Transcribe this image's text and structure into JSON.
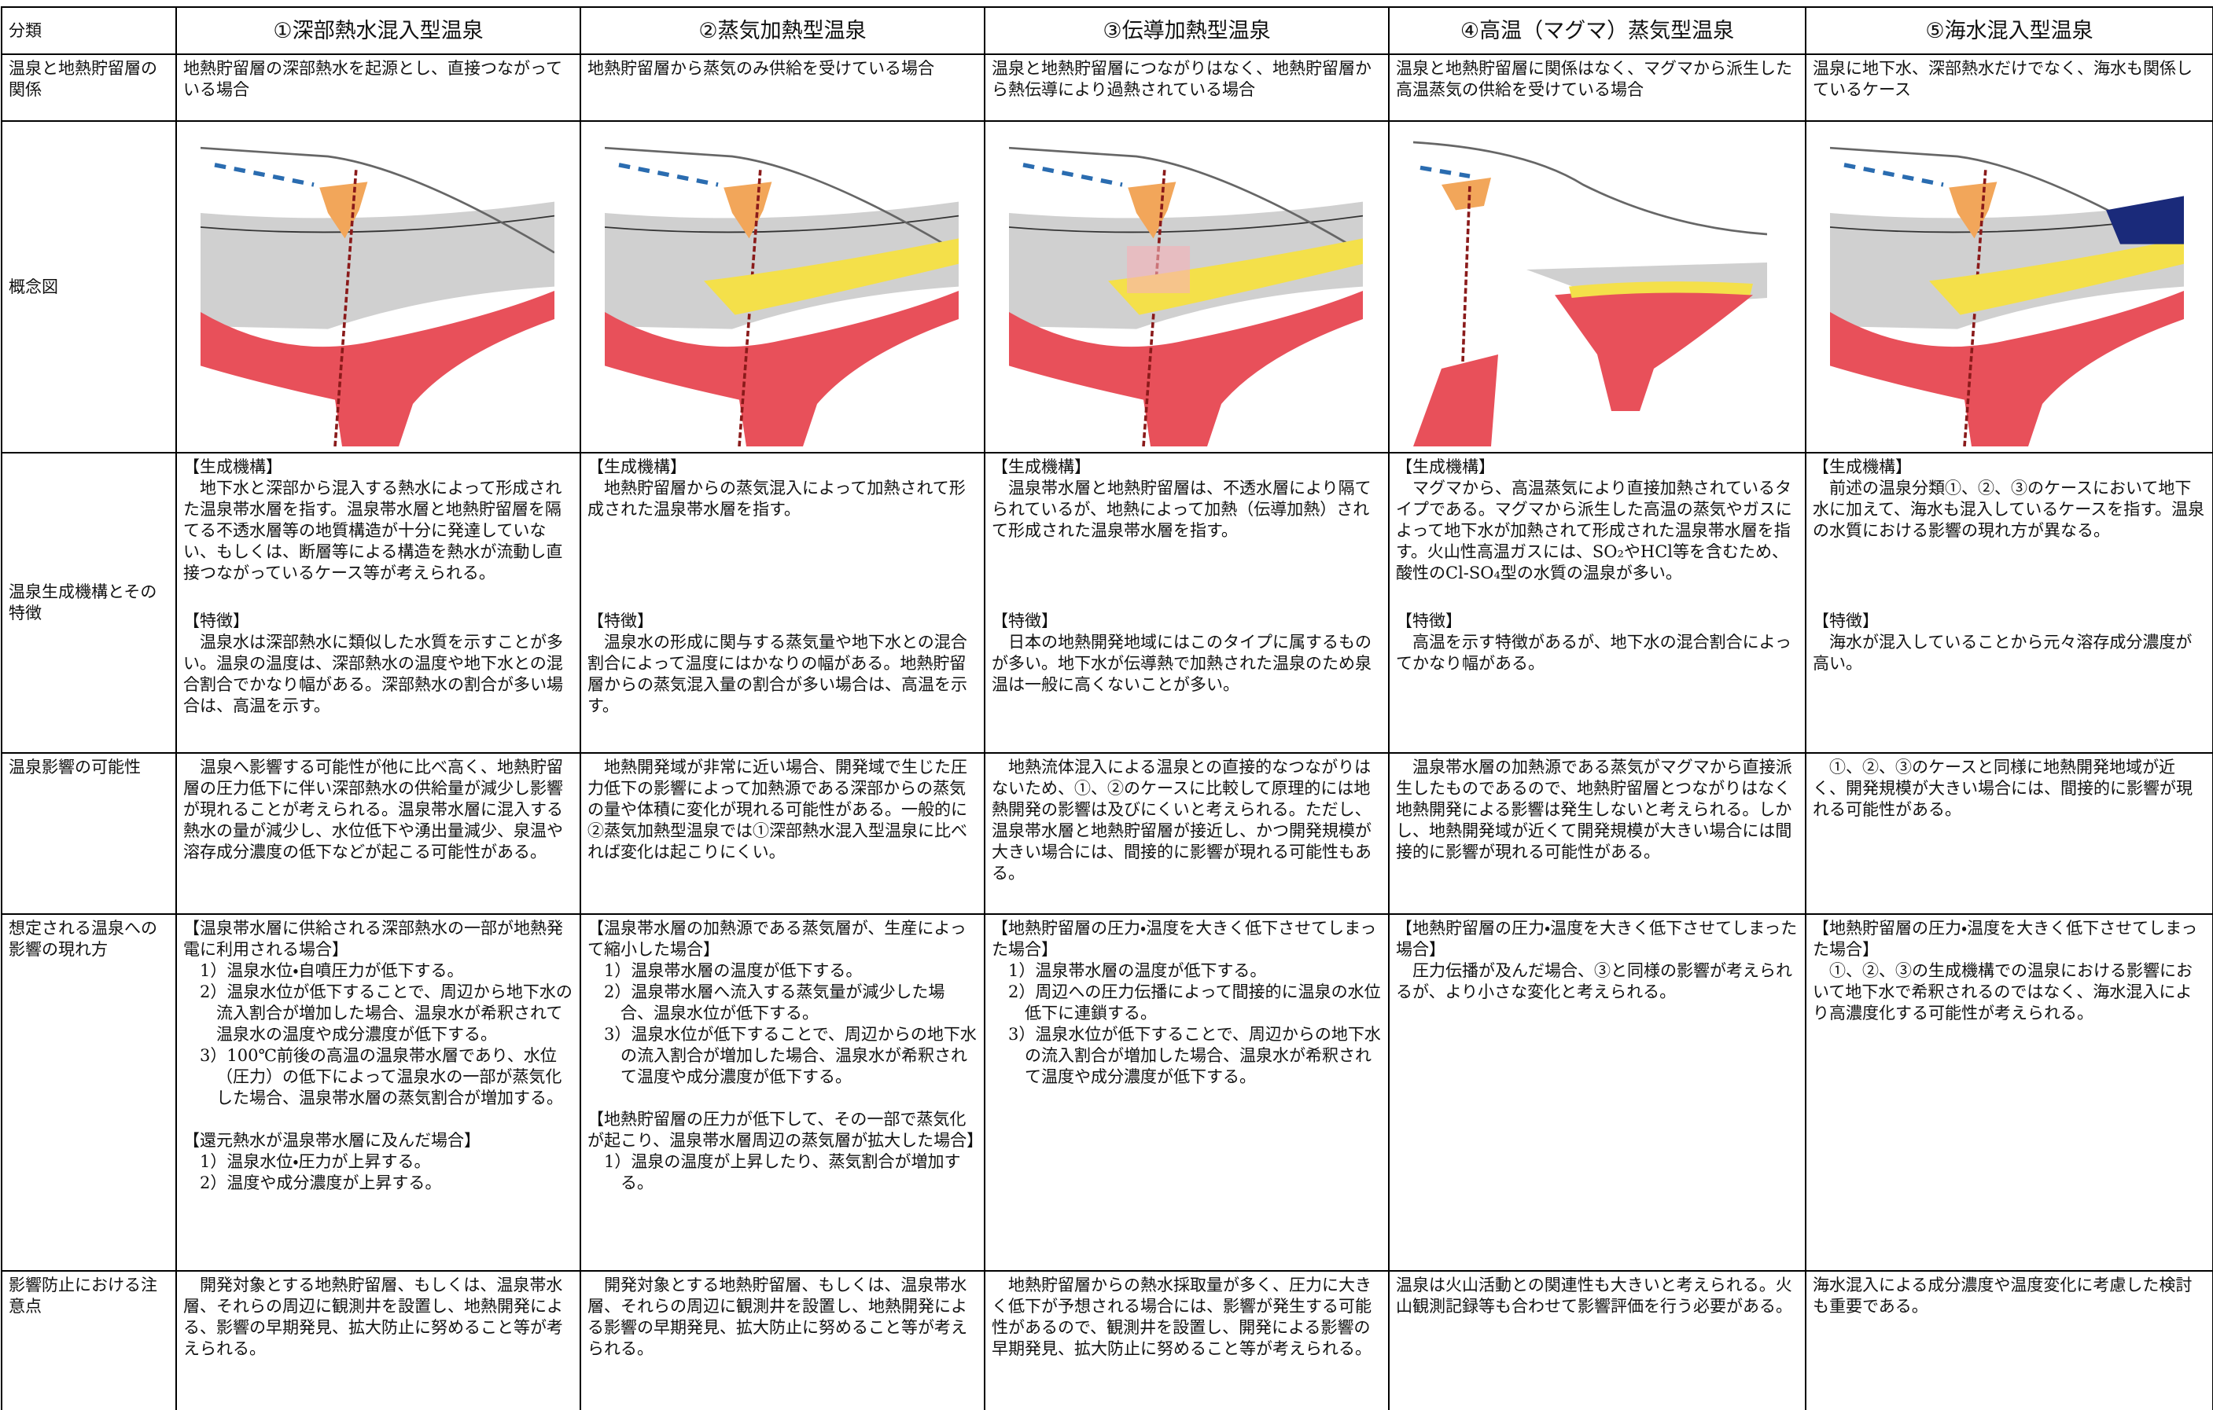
{
  "table": {
    "header": [
      "分類",
      "①深部熱水混入型温泉",
      "②蒸気加熱型温泉",
      "③伝導加熱型温泉",
      "④高温（マグマ）蒸気型温泉",
      "⑤海水混入型温泉"
    ],
    "rows": [
      {
        "label": "温泉と地熱貯留層の関係",
        "cells": [
          "地熱貯留層の深部熱水を起源とし、直接つながっている場合",
          "地熱貯留層から蒸気のみ供給を受けている場合",
          "温泉と地熱貯留層につながりはなく、地熱貯留層から熱伝導により過熱されている場合",
          "温泉と地熱貯留層に関係はなく、マグマから派生した高温蒸気の供給を受けている場合",
          "温泉に地下水、深部熱水だけでなく、海水も関係しているケース"
        ]
      },
      {
        "label": "概念図"
      },
      {
        "label": "温泉生成機構とその特徴",
        "cells": [
          {
            "mechanism_heading": "【生成機構】",
            "mechanism": "地下水と深部から混入する熱水によって形成された温泉帯水層を指す。温泉帯水層と地熱貯留層を隔てる不透水層等の地質構造が十分に発達していない、もしくは、断層等による構造を熱水が流動し直接つながっているケース等が考えられる。",
            "feature_heading": "【特徴】",
            "feature": "温泉水は深部熱水に類似した水質を示すことが多い。温泉の温度は、深部熱水の温度や地下水との混合割合でかなり幅がある。深部熱水の割合が多い場合は、高温を示す。"
          },
          {
            "mechanism_heading": "【生成機構】",
            "mechanism": "地熱貯留層からの蒸気混入によって加熱されて形成された温泉帯水層を指す。",
            "feature_heading": "【特徴】",
            "feature": "温泉水の形成に関与する蒸気量や地下水との混合割合によって温度にはかなりの幅がある。地熱貯留層からの蒸気混入量の割合が多い場合は、高温を示す。"
          },
          {
            "mechanism_heading": "【生成機構】",
            "mechanism": "温泉帯水層と地熱貯留層は、不透水層により隔てられているが、地熱によって加熱（伝導加熱）されて形成された温泉帯水層を指す。",
            "feature_heading": "【特徴】",
            "feature": "日本の地熱開発地域にはこのタイプに属するものが多い。地下水が伝導熱で加熱された温泉のため泉温は一般に高くないことが多い。"
          },
          {
            "mechanism_heading": "【生成機構】",
            "mechanism": "マグマから、高温蒸気により直接加熱されているタイプである。マグマから派生した高温の蒸気やガスによって地下水が加熱されて形成された温泉帯水層を指す。火山性高温ガスには、SO₂やHCl等を含むため、酸性のCl-SO₄型の水質の温泉が多い。",
            "feature_heading": "【特徴】",
            "feature": "高温を示す特徴があるが、地下水の混合割合によってかなり幅がある。"
          },
          {
            "mechanism_heading": "【生成機構】",
            "mechanism": "前述の温泉分類①、②、③のケースにおいて地下水に加えて、海水も混入しているケースを指す。温泉の水質における影響の現れ方が異なる。",
            "feature_heading": "【特徴】",
            "feature": "海水が混入していることから元々溶存成分濃度が高い。"
          }
        ]
      },
      {
        "label": "温泉影響の可能性",
        "cells": [
          "温泉へ影響する可能性が他に比べ高く、地熱貯留層の圧力低下に伴い深部熱水の供給量が減少し影響が現れることが考えられる。温泉帯水層に混入する熱水の量が減少し、水位低下や湧出量減少、泉温や溶存成分濃度の低下などが起こる可能性がある。",
          "地熱開発域が非常に近い場合、開発域で生じた圧力低下の影響によって加熱源である深部からの蒸気の量や体積に変化が現れる可能性がある。一般的に②蒸気加熱型温泉では①深部熱水混入型温泉に比べれば変化は起こりにくい。",
          "地熱流体混入による温泉との直接的なつながりはないため、①、②のケースに比較して原理的には地熱開発の影響は及びにくいと考えられる。ただし、温泉帯水層と地熱貯留層が接近し、かつ開発規模が大きい場合には、間接的に影響が現れる可能性もある。",
          "温泉帯水層の加熱源である蒸気がマグマから直接派生したものであるので、地熱貯留層とつながりはなく地熱開発による影響は発生しないと考えられる。しかし、地熱開発域が近くて開発規模が大きい場合には間接的に影響が現れる可能性がある。",
          "①、②、③のケースと同様に地熱開発地域が近く、開発規模が大きい場合には、間接的に影響が現れる可能性がある。"
        ]
      },
      {
        "label": "想定される温泉への影響の現れ方",
        "cells": [
          [
            {
              "heading": "【温泉帯水層に供給される深部熱水の一部が地熱発電に利用される場合】",
              "items": [
                "1）温泉水位・自噴圧力が低下する。",
                "2）温泉水位が低下することで、周辺から地下水の流入割合が増加した場合、温泉水が希釈されて温泉水の温度や成分濃度が低下する。",
                "3）100℃前後の高温の温泉帯水層であり、水位（圧力）の低下によって温泉水の一部が蒸気化した場合、温泉帯水層の蒸気割合が増加する。"
              ]
            },
            {
              "heading": "【還元熱水が温泉帯水層に及んだ場合】",
              "items": [
                "1）温泉水位・圧力が上昇する。",
                "2）温度や成分濃度が上昇する。"
              ]
            }
          ],
          [
            {
              "heading": "【温泉帯水層の加熱源である蒸気層が、生産によって縮小した場合】",
              "items": [
                "1）温泉帯水層の温度が低下する。",
                "2）温泉帯水層へ流入する蒸気量が減少した場合、温泉水位が低下する。",
                "3）温泉水位が低下することで、周辺からの地下水の流入割合が増加した場合、温泉水が希釈されて温度や成分濃度が低下する。"
              ]
            },
            {
              "heading": "【地熱貯留層の圧力が低下して、その一部で蒸気化が起こり、温泉帯水層周辺の蒸気層が拡大した場合】",
              "items": [
                "1）温泉の温度が上昇したり、蒸気割合が増加する。"
              ]
            }
          ],
          [
            {
              "heading": "【地熱貯留層の圧力・温度を大きく低下させてしまった場合】",
              "items": [
                "1）温泉帯水層の温度が低下する。",
                "2）周辺への圧力伝播によって間接的に温泉の水位低下に連鎖する。",
                "3）温泉水位が低下することで、周辺からの地下水の流入割合が増加した場合、温泉水が希釈されて温度や成分濃度が低下する。"
              ]
            }
          ],
          [
            {
              "heading": "【地熱貯留層の圧力・温度を大きく低下させてしまった場合】",
              "items": [
                "圧力伝播が及んだ場合、③と同様の影響が考えられるが、より小さな変化と考えられる。"
              ]
            }
          ],
          [
            {
              "heading": "【地熱貯留層の圧力・温度を大きく低下させてしまった場合】",
              "items": [
                "①、②、③の生成機構での温泉における影響において地下水で希釈されるのではなく、海水混入により高濃度化する可能性が考えられる。"
              ]
            }
          ]
        ]
      },
      {
        "label": "影響防止における注意点",
        "cells": [
          "開発対象とする地熱貯留層、もしくは、温泉帯水層、それらの周辺に観測井を設置し、地熱開発による、影響の早期発見、拡大防止に努めること等が考えられる。",
          "開発対象とする地熱貯留層、もしくは、温泉帯水層、それらの周辺に観測井を設置し、地熱開発による影響の早期発見、拡大防止に努めること等が考えられる。",
          "地熱貯留層からの熱水採取量が多く、圧力に大きく低下が予想される場合には、影響が発生する可能性があるので、観測井を設置し、開発による影響の早期発見、拡大防止に努めること等が考えられる。",
          "温泉は火山活動との関連性も大きいと考えられる。火山観測記録等も合わせて影響評価を行う必要がある。",
          "海水混入による成分濃度や温度変化に考慮した検討も重要である。"
        ]
      }
    ]
  }
}
